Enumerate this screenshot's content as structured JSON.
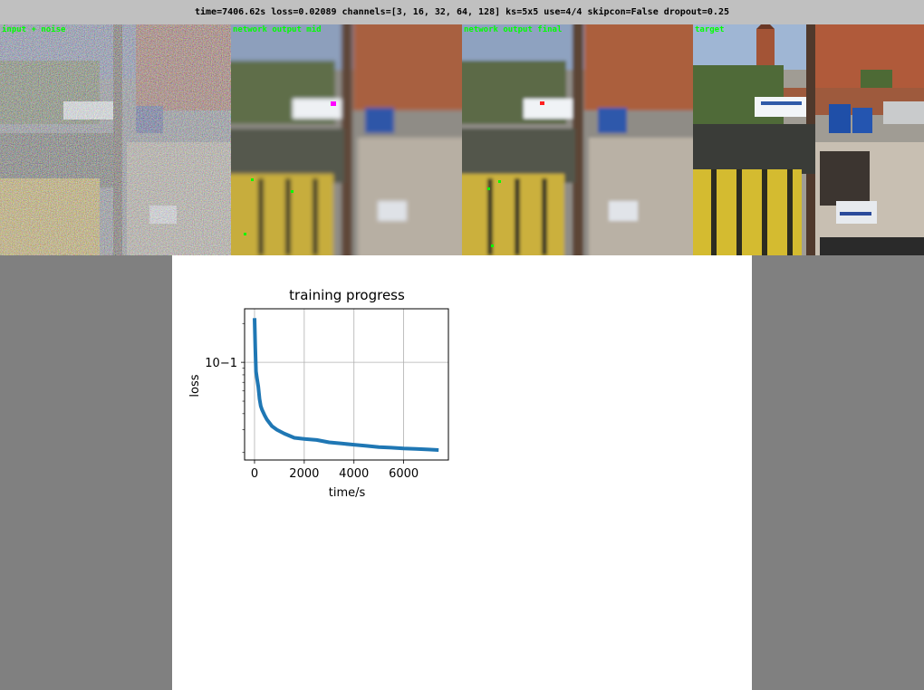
{
  "status_line": "time=7406.62s loss=0.02089  channels=[3, 16, 32, 64, 128] ks=5x5 use=4/4 skipcon=False dropout=0.25",
  "panels": [
    {
      "label": "input + noise"
    },
    {
      "label": "network output mid"
    },
    {
      "label": "network output final"
    },
    {
      "label": "target"
    }
  ],
  "chart_data": {
    "type": "line",
    "title": "training progress",
    "xlabel": "time/s",
    "ylabel": "loss",
    "xlim": [
      -400,
      7800
    ],
    "ylim": [
      0.0175,
      0.26
    ],
    "yscale": "log",
    "xticks": [
      0,
      2000,
      4000,
      6000
    ],
    "xticklabels": [
      "0",
      "2000",
      "4000",
      "6000"
    ],
    "yticks": [
      0.1
    ],
    "yticklabels": [
      "10−1"
    ],
    "grid": true,
    "color": "#1f77b4",
    "series": [
      {
        "x": [
          0,
          30,
          60,
          100,
          150,
          200,
          250,
          300,
          400,
          500,
          700,
          900,
          1200,
          1600,
          2000,
          2500,
          3000,
          3500,
          4000,
          4500,
          5000,
          5500,
          6000,
          6500,
          7000,
          7406
        ],
        "y": [
          0.22,
          0.13,
          0.085,
          0.075,
          0.065,
          0.052,
          0.046,
          0.043,
          0.039,
          0.036,
          0.032,
          0.03,
          0.028,
          0.026,
          0.0255,
          0.025,
          0.024,
          0.0235,
          0.023,
          0.0225,
          0.022,
          0.0218,
          0.0215,
          0.0213,
          0.0211,
          0.02089
        ]
      }
    ]
  }
}
